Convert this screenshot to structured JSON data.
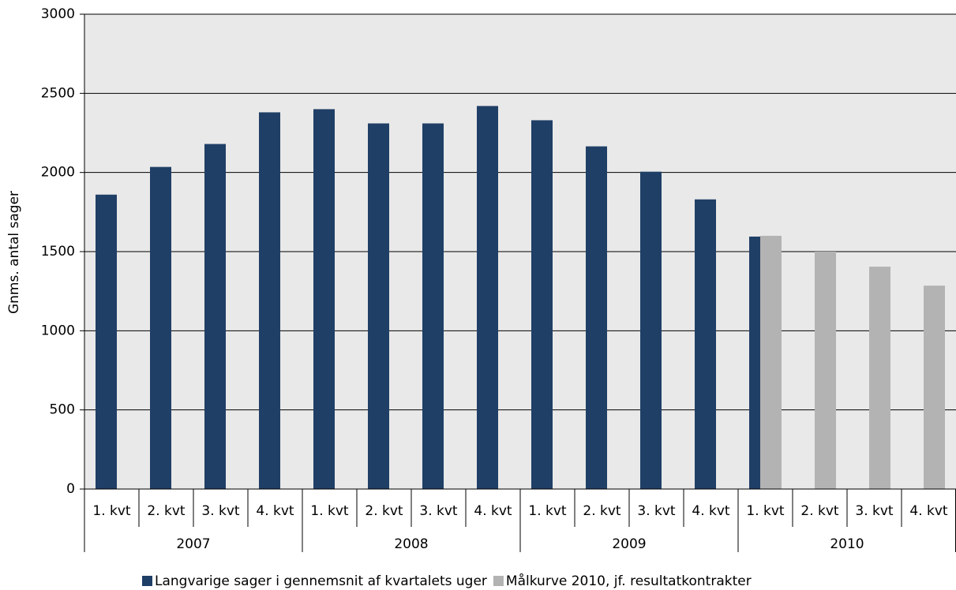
{
  "chart_data": {
    "type": "bar",
    "y_label": "Gnms. antal sager",
    "categories": [
      "1. kvt",
      "2. kvt",
      "3. kvt",
      "4. kvt",
      "1. kvt",
      "2. kvt",
      "3. kvt",
      "4. kvt",
      "1. kvt",
      "2. kvt",
      "3. kvt",
      "4. kvt",
      "1. kvt",
      "2. kvt",
      "3. kvt",
      "4. kvt"
    ],
    "groups": [
      "2007",
      "2008",
      "2009",
      "2010"
    ],
    "series": [
      {
        "name": "Langvarige sager i gennemsnit af kvartalets uger",
        "color": "#1f3f66",
        "values": [
          1860,
          2035,
          2180,
          2380,
          2400,
          2310,
          2310,
          2420,
          2330,
          2165,
          2005,
          1830,
          1595,
          null,
          null,
          null
        ]
      },
      {
        "name": "Målkurve 2010, jf. resultatkontrakter",
        "color": "#b3b3b3",
        "values": [
          null,
          null,
          null,
          null,
          null,
          null,
          null,
          null,
          null,
          null,
          null,
          null,
          1600,
          1500,
          1405,
          1285
        ]
      }
    ],
    "ylim": [
      0,
      3000
    ],
    "yticks": [
      0,
      500,
      1000,
      1500,
      2000,
      2500,
      3000
    ],
    "grid": true,
    "legend": "bottom"
  }
}
